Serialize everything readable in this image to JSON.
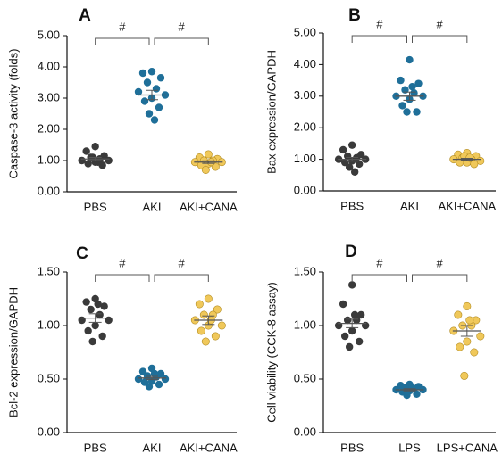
{
  "chart_data": [
    {
      "type": "dot",
      "title": "A",
      "y_label": "Caspase-3 activity (folds)",
      "categories": [
        "PBS",
        "AKI",
        "AKI+CANA"
      ],
      "colors": [
        "#3a3a3a",
        "#1f6f99",
        "#f0c85a"
      ],
      "values": [
        [
          1.45,
          1.3,
          1.15,
          1.1,
          1.05,
          1.0,
          1.0,
          0.95,
          0.9,
          0.85,
          1.1,
          0.95
        ],
        [
          3.85,
          3.8,
          3.65,
          3.5,
          3.3,
          3.2,
          3.1,
          3.0,
          2.9,
          2.7,
          2.5,
          2.3
        ],
        [
          1.2,
          1.1,
          1.05,
          1.0,
          1.0,
          0.95,
          0.95,
          0.9,
          0.85,
          0.8,
          0.7,
          0.95
        ]
      ],
      "means": [
        1.05,
        3.1,
        0.95
      ],
      "errors": [
        0.05,
        0.15,
        0.04
      ],
      "ylim": [
        0,
        5
      ],
      "yticks": [
        {
          "value": 0,
          "label": "0.00"
        },
        {
          "value": 1,
          "label": "1.00"
        },
        {
          "value": 2,
          "label": "2.00"
        },
        {
          "value": 3,
          "label": "3.00"
        },
        {
          "value": 4,
          "label": "4.00"
        },
        {
          "value": 5,
          "label": "5.00"
        }
      ],
      "comparisons": [
        {
          "label": "#",
          "groups": [
            "PBS",
            "AKI"
          ]
        },
        {
          "label": "#",
          "groups": [
            "AKI",
            "AKI+CANA"
          ]
        }
      ]
    },
    {
      "type": "dot",
      "title": "B",
      "y_label": "Bax expression/GAPDH",
      "categories": [
        "PBS",
        "AKI",
        "AKI+CANA"
      ],
      "colors": [
        "#3a3a3a",
        "#1f6f99",
        "#f0c85a"
      ],
      "values": [
        [
          1.45,
          1.3,
          1.15,
          1.1,
          1.05,
          1.0,
          1.0,
          0.95,
          0.9,
          0.85,
          0.75,
          0.6
        ],
        [
          4.15,
          3.5,
          3.4,
          3.2,
          3.1,
          3.0,
          3.0,
          2.9,
          2.7,
          2.5,
          2.5,
          3.3
        ],
        [
          1.2,
          1.15,
          1.1,
          1.05,
          1.0,
          1.0,
          0.95,
          0.9,
          0.9,
          0.85,
          1.1,
          1.05
        ]
      ],
      "means": [
        1.0,
        3.0,
        1.0
      ],
      "errors": [
        0.06,
        0.13,
        0.03
      ],
      "ylim": [
        0,
        5
      ],
      "yticks": [
        {
          "value": 0,
          "label": "0.00"
        },
        {
          "value": 1,
          "label": "1.00"
        },
        {
          "value": 2,
          "label": "2.00"
        },
        {
          "value": 3,
          "label": "3.00"
        },
        {
          "value": 4,
          "label": "4.00"
        },
        {
          "value": 5,
          "label": "5.00"
        }
      ],
      "comparisons": [
        {
          "label": "#",
          "groups": [
            "PBS",
            "AKI"
          ]
        },
        {
          "label": "#",
          "groups": [
            "AKI",
            "AKI+CANA"
          ]
        }
      ]
    },
    {
      "type": "dot",
      "title": "C",
      "y_label": "Bcl-2 expression/GAPDH",
      "categories": [
        "PBS",
        "AKI",
        "AKI+CANA"
      ],
      "colors": [
        "#3a3a3a",
        "#1f6f99",
        "#f0c85a"
      ],
      "values": [
        [
          1.25,
          1.22,
          1.18,
          1.15,
          1.1,
          1.05,
          1.05,
          1.0,
          0.95,
          0.9,
          0.85,
          1.2
        ],
        [
          0.6,
          0.57,
          0.55,
          0.53,
          0.52,
          0.5,
          0.5,
          0.48,
          0.47,
          0.45,
          0.43,
          0.55
        ],
        [
          1.25,
          1.2,
          1.15,
          1.1,
          1.1,
          1.05,
          1.0,
          1.0,
          0.95,
          0.9,
          0.85,
          1.05
        ]
      ],
      "means": [
        1.07,
        0.51,
        1.05
      ],
      "errors": [
        0.04,
        0.015,
        0.04
      ],
      "ylim": [
        0,
        1.5
      ],
      "yticks": [
        {
          "value": 0,
          "label": "0.00"
        },
        {
          "value": 0.5,
          "label": "0.50"
        },
        {
          "value": 1,
          "label": "1.00"
        },
        {
          "value": 1.5,
          "label": "1.50"
        }
      ],
      "comparisons": [
        {
          "label": "#",
          "groups": [
            "PBS",
            "AKI"
          ]
        },
        {
          "label": "#",
          "groups": [
            "AKI",
            "AKI+CANA"
          ]
        }
      ]
    },
    {
      "type": "dot",
      "title": "D",
      "y_label": "Cell viability (CCK-8 assay)",
      "categories": [
        "PBS",
        "LPS",
        "LPS+CANA"
      ],
      "colors": [
        "#3a3a3a",
        "#1f6f99",
        "#f0c85a"
      ],
      "values": [
        [
          1.38,
          1.2,
          1.1,
          1.05,
          1.05,
          1.0,
          1.0,
          0.95,
          0.9,
          0.85,
          0.8,
          1.1
        ],
        [
          0.45,
          0.44,
          0.43,
          0.42,
          0.41,
          0.4,
          0.4,
          0.39,
          0.38,
          0.36,
          0.35,
          0.42
        ],
        [
          1.18,
          1.1,
          1.05,
          1.0,
          1.0,
          0.95,
          0.9,
          0.85,
          0.8,
          0.75,
          0.53,
          1.05
        ]
      ],
      "means": [
        1.02,
        0.4,
        0.95
      ],
      "errors": [
        0.04,
        0.01,
        0.05
      ],
      "ylim": [
        0,
        1.5
      ],
      "yticks": [
        {
          "value": 0,
          "label": "0.00"
        },
        {
          "value": 0.5,
          "label": "0.50"
        },
        {
          "value": 1,
          "label": "1.00"
        },
        {
          "value": 1.5,
          "label": "1.50"
        }
      ],
      "comparisons": [
        {
          "label": "#",
          "groups": [
            "PBS",
            "LPS"
          ]
        },
        {
          "label": "#",
          "groups": [
            "LPS",
            "LPS+CANA"
          ]
        }
      ]
    }
  ]
}
